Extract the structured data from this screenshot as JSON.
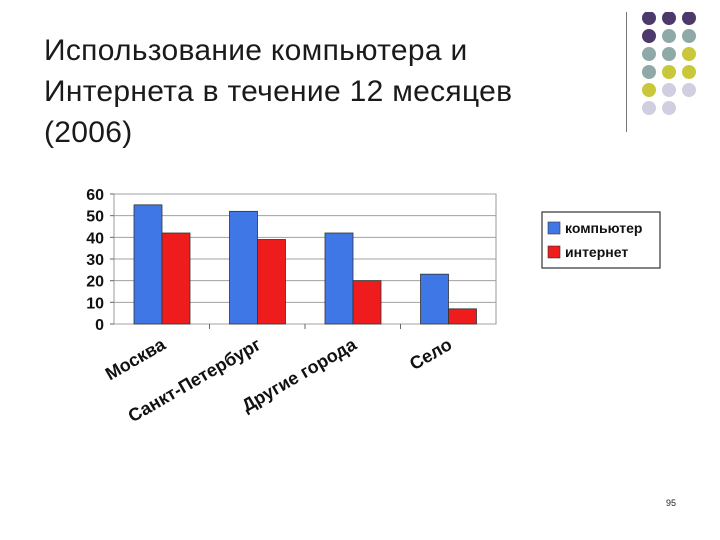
{
  "slide": {
    "title": "Использование компьютера и Интернета в течение 12 месяцев (2006)",
    "page_number": "95"
  },
  "decoration": {
    "dot_colors": {
      "purple": "#4b3a6b",
      "teal": "#8fa8a8",
      "olive": "#c8c83a",
      "lavender": "#d0cfe0"
    },
    "rows": [
      [
        "purple",
        "purple",
        "purple"
      ],
      [
        "purple",
        "teal",
        "teal"
      ],
      [
        "teal",
        "teal",
        "olive"
      ],
      [
        "teal",
        "olive",
        "olive"
      ],
      [
        "olive",
        "lavender",
        "lavender"
      ],
      [
        "lavender",
        "lavender"
      ]
    ]
  },
  "chart_data": {
    "type": "bar",
    "categories": [
      "Москва",
      "Санкт-Петербург",
      "Другие города",
      "Село"
    ],
    "series": [
      {
        "name": "компьютер",
        "color": "#3f77e6",
        "values": [
          55,
          52,
          42,
          23
        ]
      },
      {
        "name": "интернет",
        "color": "#ee1c1c",
        "values": [
          42,
          39,
          20,
          7
        ]
      }
    ],
    "ylim": [
      0,
      60
    ],
    "yticks": [
      0,
      10,
      20,
      30,
      40,
      50,
      60
    ],
    "grid": true,
    "legend": "right",
    "title": "",
    "xlabel": "",
    "ylabel": ""
  }
}
